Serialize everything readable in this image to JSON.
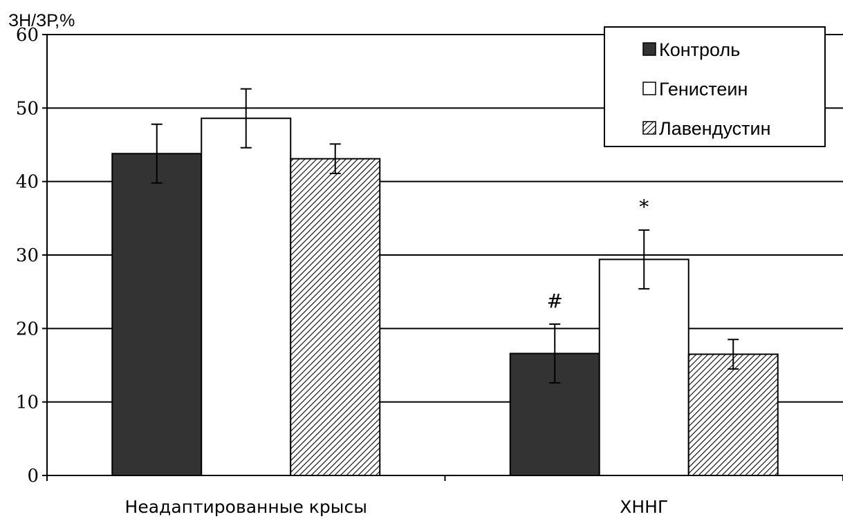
{
  "chart_data": {
    "type": "bar",
    "ylabel": "ЗН/ЗР,%",
    "ylim": [
      0,
      60
    ],
    "yticks": [
      0,
      10,
      20,
      30,
      40,
      50,
      60
    ],
    "grid": true,
    "legend_position": "top-right",
    "categories": [
      "Неадаптированные крысы",
      "ХННГ"
    ],
    "series": [
      {
        "name": "Контроль",
        "values": [
          43.8,
          16.6
        ],
        "errors": [
          4.0,
          4.0
        ],
        "color": "#333333",
        "pattern": "solid"
      },
      {
        "name": "Генистеин",
        "values": [
          48.6,
          29.4
        ],
        "errors": [
          4.0,
          4.0
        ],
        "color": "#ffffff",
        "pattern": "solid"
      },
      {
        "name": "Лавендустин",
        "values": [
          43.1,
          16.5
        ],
        "errors": [
          2.0,
          2.0
        ],
        "color": "#ffffff",
        "pattern": "diagonal-hatch"
      }
    ],
    "annotations": [
      {
        "text": "#",
        "series": 0,
        "category": 1
      },
      {
        "text": "*",
        "series": 1,
        "category": 1
      }
    ]
  }
}
